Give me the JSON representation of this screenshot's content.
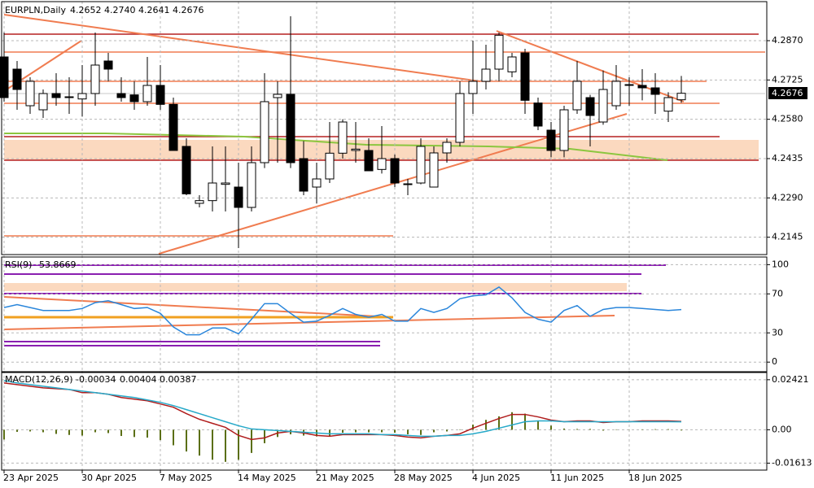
{
  "chart_data": [
    {
      "type": "candlestick",
      "title": "EURPLN,Daily",
      "ohlc_labels": [
        "4.2652",
        "4.2740",
        "4.2641",
        "4.2676"
      ],
      "categories": [
        "23 Apr 2025",
        null,
        null,
        null,
        null,
        null,
        "30 Apr 2025",
        null,
        null,
        null,
        null,
        null,
        "7 May 2025",
        null,
        null,
        null,
        null,
        null,
        "14 May 2025",
        null,
        null,
        null,
        null,
        null,
        "21 May 2025",
        null,
        null,
        null,
        null,
        null,
        "28 May 2025",
        null,
        null,
        null,
        null,
        null,
        "4 Jun 2025",
        null,
        null,
        null,
        null,
        null,
        "11 Jun 2025",
        null,
        null,
        null,
        null,
        null,
        "18 Jun 2025",
        null,
        null,
        null,
        null
      ],
      "open": [
        4.281,
        4.2765,
        4.263,
        4.2615,
        4.2675,
        4.266,
        4.2655,
        4.2675,
        4.2795,
        4.2675,
        4.267,
        4.2645,
        4.2705,
        4.2635,
        4.248,
        4.227,
        4.228,
        4.234,
        4.233,
        4.2255,
        4.242,
        4.266,
        4.2672,
        4.2435,
        4.233,
        4.236,
        4.2455,
        4.2465,
        4.2465,
        4.2395,
        4.2435,
        4.234,
        4.2345,
        4.233,
        4.2456,
        4.2495,
        4.2675,
        4.272,
        4.2765,
        4.2755,
        4.2825,
        4.264,
        4.254,
        4.2465,
        4.2615,
        4.266,
        4.257,
        4.263,
        4.2705,
        4.2705,
        4.2696,
        4.261,
        4.2652
      ],
      "high": [
        4.29,
        4.2795,
        4.2735,
        4.269,
        4.275,
        4.2735,
        4.278,
        4.29,
        4.2825,
        4.2735,
        4.272,
        4.281,
        4.278,
        4.266,
        4.251,
        4.23,
        4.248,
        4.248,
        4.242,
        4.248,
        4.275,
        4.272,
        4.296,
        4.25,
        4.242,
        4.257,
        4.258,
        4.257,
        4.251,
        4.2555,
        4.245,
        4.236,
        4.251,
        4.248,
        4.251,
        4.272,
        4.287,
        4.2855,
        4.29,
        4.2825,
        4.284,
        4.266,
        4.257,
        4.263,
        4.2795,
        4.267,
        4.276,
        4.278,
        4.2735,
        4.2765,
        4.275,
        4.268,
        4.274
      ],
      "low": [
        4.2645,
        4.2615,
        4.26,
        4.2585,
        4.263,
        4.26,
        4.259,
        4.263,
        4.272,
        4.2645,
        4.2615,
        4.263,
        4.2615,
        4.2465,
        4.23,
        4.2255,
        4.224,
        4.224,
        4.2105,
        4.224,
        4.24,
        4.242,
        4.24,
        4.23,
        4.227,
        4.2345,
        4.2435,
        4.242,
        4.239,
        4.238,
        4.233,
        4.23,
        4.234,
        4.233,
        4.242,
        4.248,
        4.26,
        4.269,
        4.272,
        4.2735,
        4.26,
        4.254,
        4.244,
        4.244,
        4.26,
        4.248,
        4.256,
        4.2615,
        4.263,
        4.265,
        4.26,
        4.257,
        4.2641
      ],
      "close": [
        4.266,
        4.269,
        4.272,
        4.2675,
        4.266,
        4.2663,
        4.2675,
        4.278,
        4.2765,
        4.266,
        4.2645,
        4.2705,
        4.2635,
        4.2465,
        4.2305,
        4.228,
        4.2345,
        4.2345,
        4.2255,
        4.242,
        4.2645,
        4.2672,
        4.242,
        4.2315,
        4.236,
        4.2455,
        4.257,
        4.247,
        4.239,
        4.2435,
        4.2345,
        4.2342,
        4.248,
        4.2456,
        4.2495,
        4.2675,
        4.272,
        4.2765,
        4.289,
        4.281,
        4.265,
        4.2555,
        4.2465,
        4.2615,
        4.272,
        4.2594,
        4.269,
        4.272,
        4.2708,
        4.2696,
        4.2672,
        4.266,
        4.2676
      ],
      "up_color": "#ffffff",
      "down_color": "#000000",
      "ylim": [
        4.2084,
        4.3005
      ],
      "yticks": [
        {
          "value": 4.287,
          "label": "4.2870"
        },
        4.2725,
        {
          "value": 4.258,
          "label": "4.2580"
        },
        4.2435,
        {
          "value": 4.229,
          "label": "4.2290"
        },
        4.2145
      ],
      "grid": true
    },
    {
      "type": "line",
      "title": "RSI(9)",
      "values": [
        56,
        59,
        56,
        53,
        53,
        53,
        55,
        61,
        63,
        59,
        55,
        56,
        50,
        36,
        28,
        28,
        35,
        35,
        29,
        44,
        60,
        60,
        50,
        41,
        42,
        48,
        55,
        49,
        46,
        49,
        42,
        42,
        55,
        51,
        55,
        65,
        68,
        69,
        77,
        66,
        51,
        44,
        41,
        53,
        58,
        47,
        54,
        56,
        56,
        55,
        54,
        53,
        53.8669
      ],
      "color": "#2a86db",
      "ylim": [
        -9,
        107
      ],
      "yticks": [
        0,
        30,
        70,
        100
      ],
      "grid": true
    },
    {
      "type": "macd",
      "title": "MACD(12,26,9)",
      "series": [
        {
          "style": "bar",
          "color": "#5b6f16",
          "values": [
            -0.0047,
            -0.001,
            -0.0008,
            -0.0012,
            -0.002,
            -0.0025,
            -0.0028,
            -0.0012,
            -0.0016,
            -0.003,
            -0.0035,
            -0.0038,
            -0.005,
            -0.0075,
            -0.0105,
            -0.0125,
            -0.0145,
            -0.0155,
            -0.0145,
            -0.0112,
            -0.0065,
            -0.0035,
            -0.0022,
            -0.0028,
            -0.0032,
            -0.003,
            -0.0014,
            -0.0012,
            -0.0012,
            -0.0012,
            -0.0014,
            -0.0022,
            -0.0025,
            -0.0012,
            -0.0008,
            0.0002,
            0.0025,
            0.0048,
            0.0065,
            0.0085,
            0.0078,
            0.0045,
            0.002,
            0.0006,
            0.0004,
            0.0004,
            -0.0004,
            0.0002,
            0.0001,
            0.0002,
            0.0003,
            0.0003,
            -0.00034
          ]
        },
        {
          "style": "line",
          "color": "#b01c1c",
          "values": [
            0.02262,
            0.02184,
            0.02106,
            0.02028,
            0.01989,
            0.0195,
            0.01794,
            0.01794,
            0.01716,
            0.0156,
            0.01482,
            0.01404,
            0.01248,
            0.01092,
            0.0078,
            0.00507,
            0.00312,
            0.00117,
            -0.00273,
            -0.00468,
            -0.0039,
            -0.00156,
            -0.00078,
            -0.00156,
            -0.00273,
            -0.00312,
            -0.00234,
            -0.00234,
            -0.00234,
            -0.00234,
            -0.00273,
            -0.00351,
            -0.0039,
            -0.00312,
            -0.00273,
            -0.00195,
            0.00078,
            0.00312,
            0.00546,
            0.00741,
            0.00741,
            0.00624,
            0.00468,
            0.0039,
            0.00429,
            0.00429,
            0.00351,
            0.0039,
            0.0039,
            0.00429,
            0.00429,
            0.00429,
            0.00404
          ]
        },
        {
          "style": "line",
          "color": "#26a9c9",
          "values": [
            0.02379,
            0.02262,
            0.02184,
            0.02106,
            0.02028,
            0.0195,
            0.01872,
            0.01794,
            0.01716,
            0.01638,
            0.0156,
            0.01443,
            0.01326,
            0.0117,
            0.00975,
            0.0078,
            0.00585,
            0.0039,
            0.00195,
            0.00039,
            0,
            -0.00039,
            -0.00078,
            -0.00117,
            -0.00156,
            -0.00195,
            -0.00195,
            -0.00195,
            -0.00195,
            -0.00234,
            -0.00234,
            -0.00273,
            -0.00312,
            -0.00312,
            -0.00273,
            -0.00273,
            -0.00195,
            -0.00078,
            0.00078,
            0.00234,
            0.0039,
            0.00429,
            0.00429,
            0.0039,
            0.0039,
            0.0039,
            0.0039,
            0.0039,
            0.0039,
            0.0039,
            0.0039,
            0.0039,
            0.00387
          ]
        }
      ],
      "ylim": [
        -0.0195,
        0.0273
      ],
      "yticks": [
        0.02421,
        {
          "value": 0,
          "label": "0.00"
        },
        -0.01613
      ],
      "grid": true
    }
  ]
}
